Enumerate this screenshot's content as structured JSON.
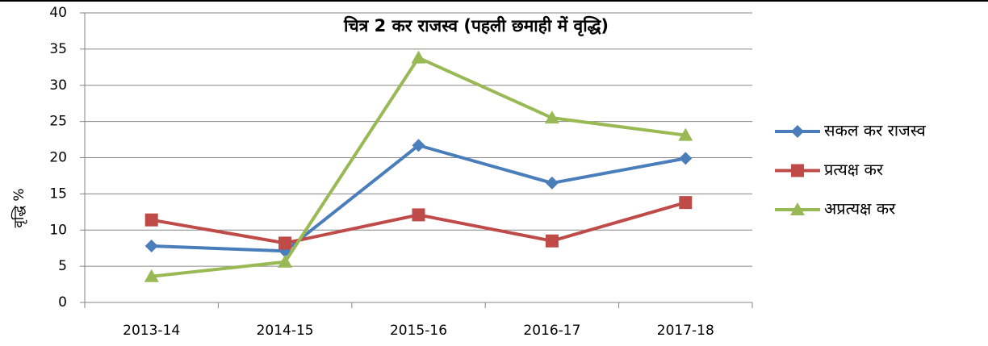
{
  "chart_data": {
    "type": "line",
    "title": "चित्र 2 कर राजस्व (पहली छमाही में वृद्धि)",
    "y_label": "वृद्धि %",
    "categories": [
      "2013-14",
      "2014-15",
      "2015-16",
      "2016-17",
      "2017-18"
    ],
    "series": [
      {
        "name": "सकल कर राजस्व",
        "color": "#4a7ebb",
        "marker": "diamond",
        "values": [
          7.8,
          7.1,
          21.7,
          16.5,
          19.9
        ]
      },
      {
        "name": "प्रत्यक्ष कर",
        "color": "#be4b48",
        "marker": "square",
        "values": [
          11.4,
          8.2,
          12.1,
          8.5,
          13.8
        ]
      },
      {
        "name": "अप्रत्यक्ष कर",
        "color": "#98b954",
        "marker": "triangle",
        "values": [
          3.6,
          5.6,
          33.8,
          25.5,
          23.1
        ]
      }
    ],
    "ylim": [
      0,
      40
    ],
    "yticks": [
      0,
      5,
      10,
      15,
      20,
      25,
      30,
      35,
      40
    ],
    "grid": true,
    "legend": "right"
  }
}
